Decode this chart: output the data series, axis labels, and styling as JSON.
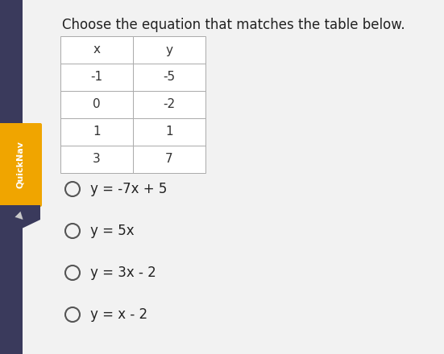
{
  "title": "Choose the equation that matches the table below.",
  "title_fontsize": 12,
  "background_color": "#dcdcdc",
  "content_bg": "#f0f0f0",
  "table_x_header": "x",
  "table_y_header": "y",
  "table_data": [
    [
      "-1",
      "-5"
    ],
    [
      "0",
      "-2"
    ],
    [
      "1",
      "1"
    ],
    [
      "3",
      "7"
    ]
  ],
  "options": [
    "y = -7x + 5",
    "y = 5x",
    "y = 3x - 2",
    "y = x - 2"
  ],
  "option_fontsize": 12,
  "sidebar_color": "#f0a500",
  "sidebar_text": "QuickNav",
  "sidebar_text_color": "#ffffff",
  "tab_color": "#3a3a5c",
  "left_bar_color": "#3a3a5c"
}
